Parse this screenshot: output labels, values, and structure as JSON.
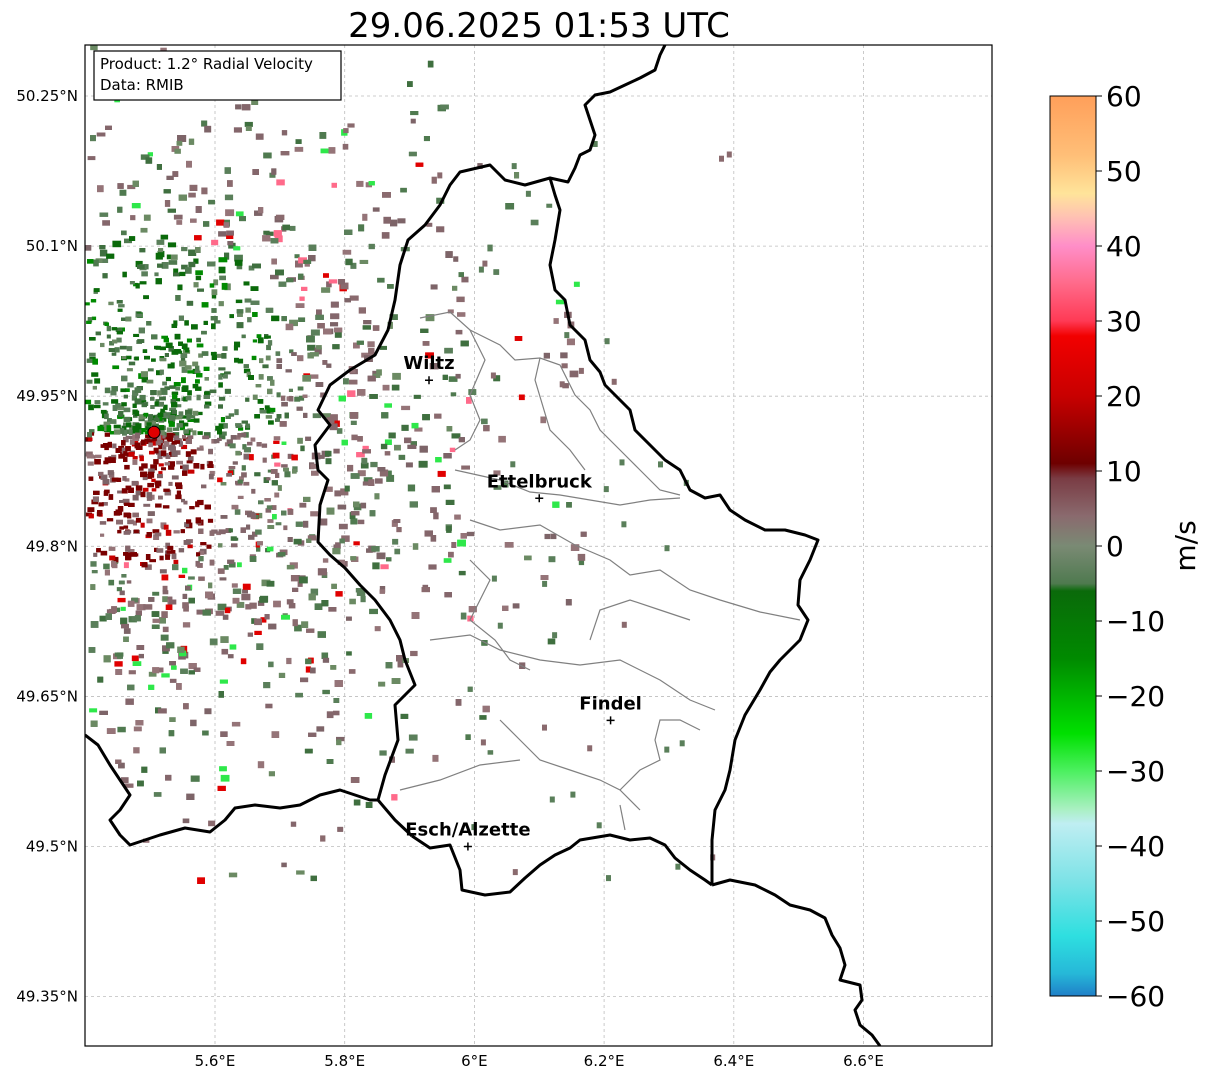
{
  "title": "29.06.2025 01:53 UTC",
  "info_box": {
    "line1": "Product: 1.2° Radial Velocity",
    "line2": "Data: RMIB"
  },
  "map": {
    "lon_range": [
      5.4,
      6.8
    ],
    "lat_range": [
      49.3,
      50.3
    ],
    "lon_ticks": [
      5.6,
      5.8,
      6.0,
      6.2,
      6.4,
      6.6
    ],
    "lon_tick_labels": [
      "5.6°E",
      "5.8°E",
      "6°E",
      "6.2°E",
      "6.4°E",
      "6.6°E"
    ],
    "lat_ticks": [
      50.25,
      50.1,
      49.95,
      49.8,
      49.65,
      49.5,
      49.35
    ],
    "lat_tick_labels": [
      "50.25°N",
      "50.1°N",
      "49.95°N",
      "49.8°N",
      "49.65°N",
      "49.5°N",
      "49.35°N"
    ],
    "grid": true,
    "radar_site": {
      "lon": 5.506,
      "lat": 49.914,
      "color": "#e00000"
    }
  },
  "cities": [
    {
      "name": "Wiltz",
      "lon": 5.93,
      "lat": 49.966
    },
    {
      "name": "Ettelbruck",
      "lon": 6.1,
      "lat": 49.848
    },
    {
      "name": "Findel",
      "lon": 6.21,
      "lat": 49.626
    },
    {
      "name": "Esch/Alzette",
      "lon": 5.99,
      "lat": 49.5
    }
  ],
  "colorbar": {
    "unit": "m/s",
    "min": -60,
    "max": 60,
    "ticks": [
      60,
      50,
      40,
      30,
      20,
      10,
      0,
      -10,
      -20,
      -30,
      -40,
      -50,
      -60
    ],
    "tick_labels": [
      "60",
      "50",
      "40",
      "30",
      "20",
      "10",
      "0",
      "−10",
      "−20",
      "−30",
      "−40",
      "−50",
      "−60"
    ],
    "stops": [
      {
        "v": 60,
        "c": "#ff9f5a"
      },
      {
        "v": 52,
        "c": "#ffbf78"
      },
      {
        "v": 47,
        "c": "#ffe49a"
      },
      {
        "v": 44,
        "c": "#ffc3b2"
      },
      {
        "v": 40,
        "c": "#ff8ec8"
      },
      {
        "v": 35,
        "c": "#ff6a8a"
      },
      {
        "v": 30,
        "c": "#ff3a55"
      },
      {
        "v": 28,
        "c": "#f20000"
      },
      {
        "v": 20,
        "c": "#c80000"
      },
      {
        "v": 11,
        "c": "#6e0000"
      },
      {
        "v": 9,
        "c": "#7a3c44"
      },
      {
        "v": 4,
        "c": "#8a6a6e"
      },
      {
        "v": 0,
        "c": "#7a8a74"
      },
      {
        "v": -5,
        "c": "#4f7a4f"
      },
      {
        "v": -6,
        "c": "#0a6a0a"
      },
      {
        "v": -15,
        "c": "#008a00"
      },
      {
        "v": -25,
        "c": "#00e000"
      },
      {
        "v": -30,
        "c": "#4cf060"
      },
      {
        "v": -35,
        "c": "#a8f0c0"
      },
      {
        "v": -37,
        "c": "#bfeef2"
      },
      {
        "v": -45,
        "c": "#7ae2e6"
      },
      {
        "v": -52,
        "c": "#2edfe0"
      },
      {
        "v": -57,
        "c": "#26b8d8"
      },
      {
        "v": -60,
        "c": "#1f7fc8"
      }
    ]
  },
  "colors": {
    "border": "#000000",
    "canton": "#808080",
    "grid": "#bdbdbd"
  }
}
